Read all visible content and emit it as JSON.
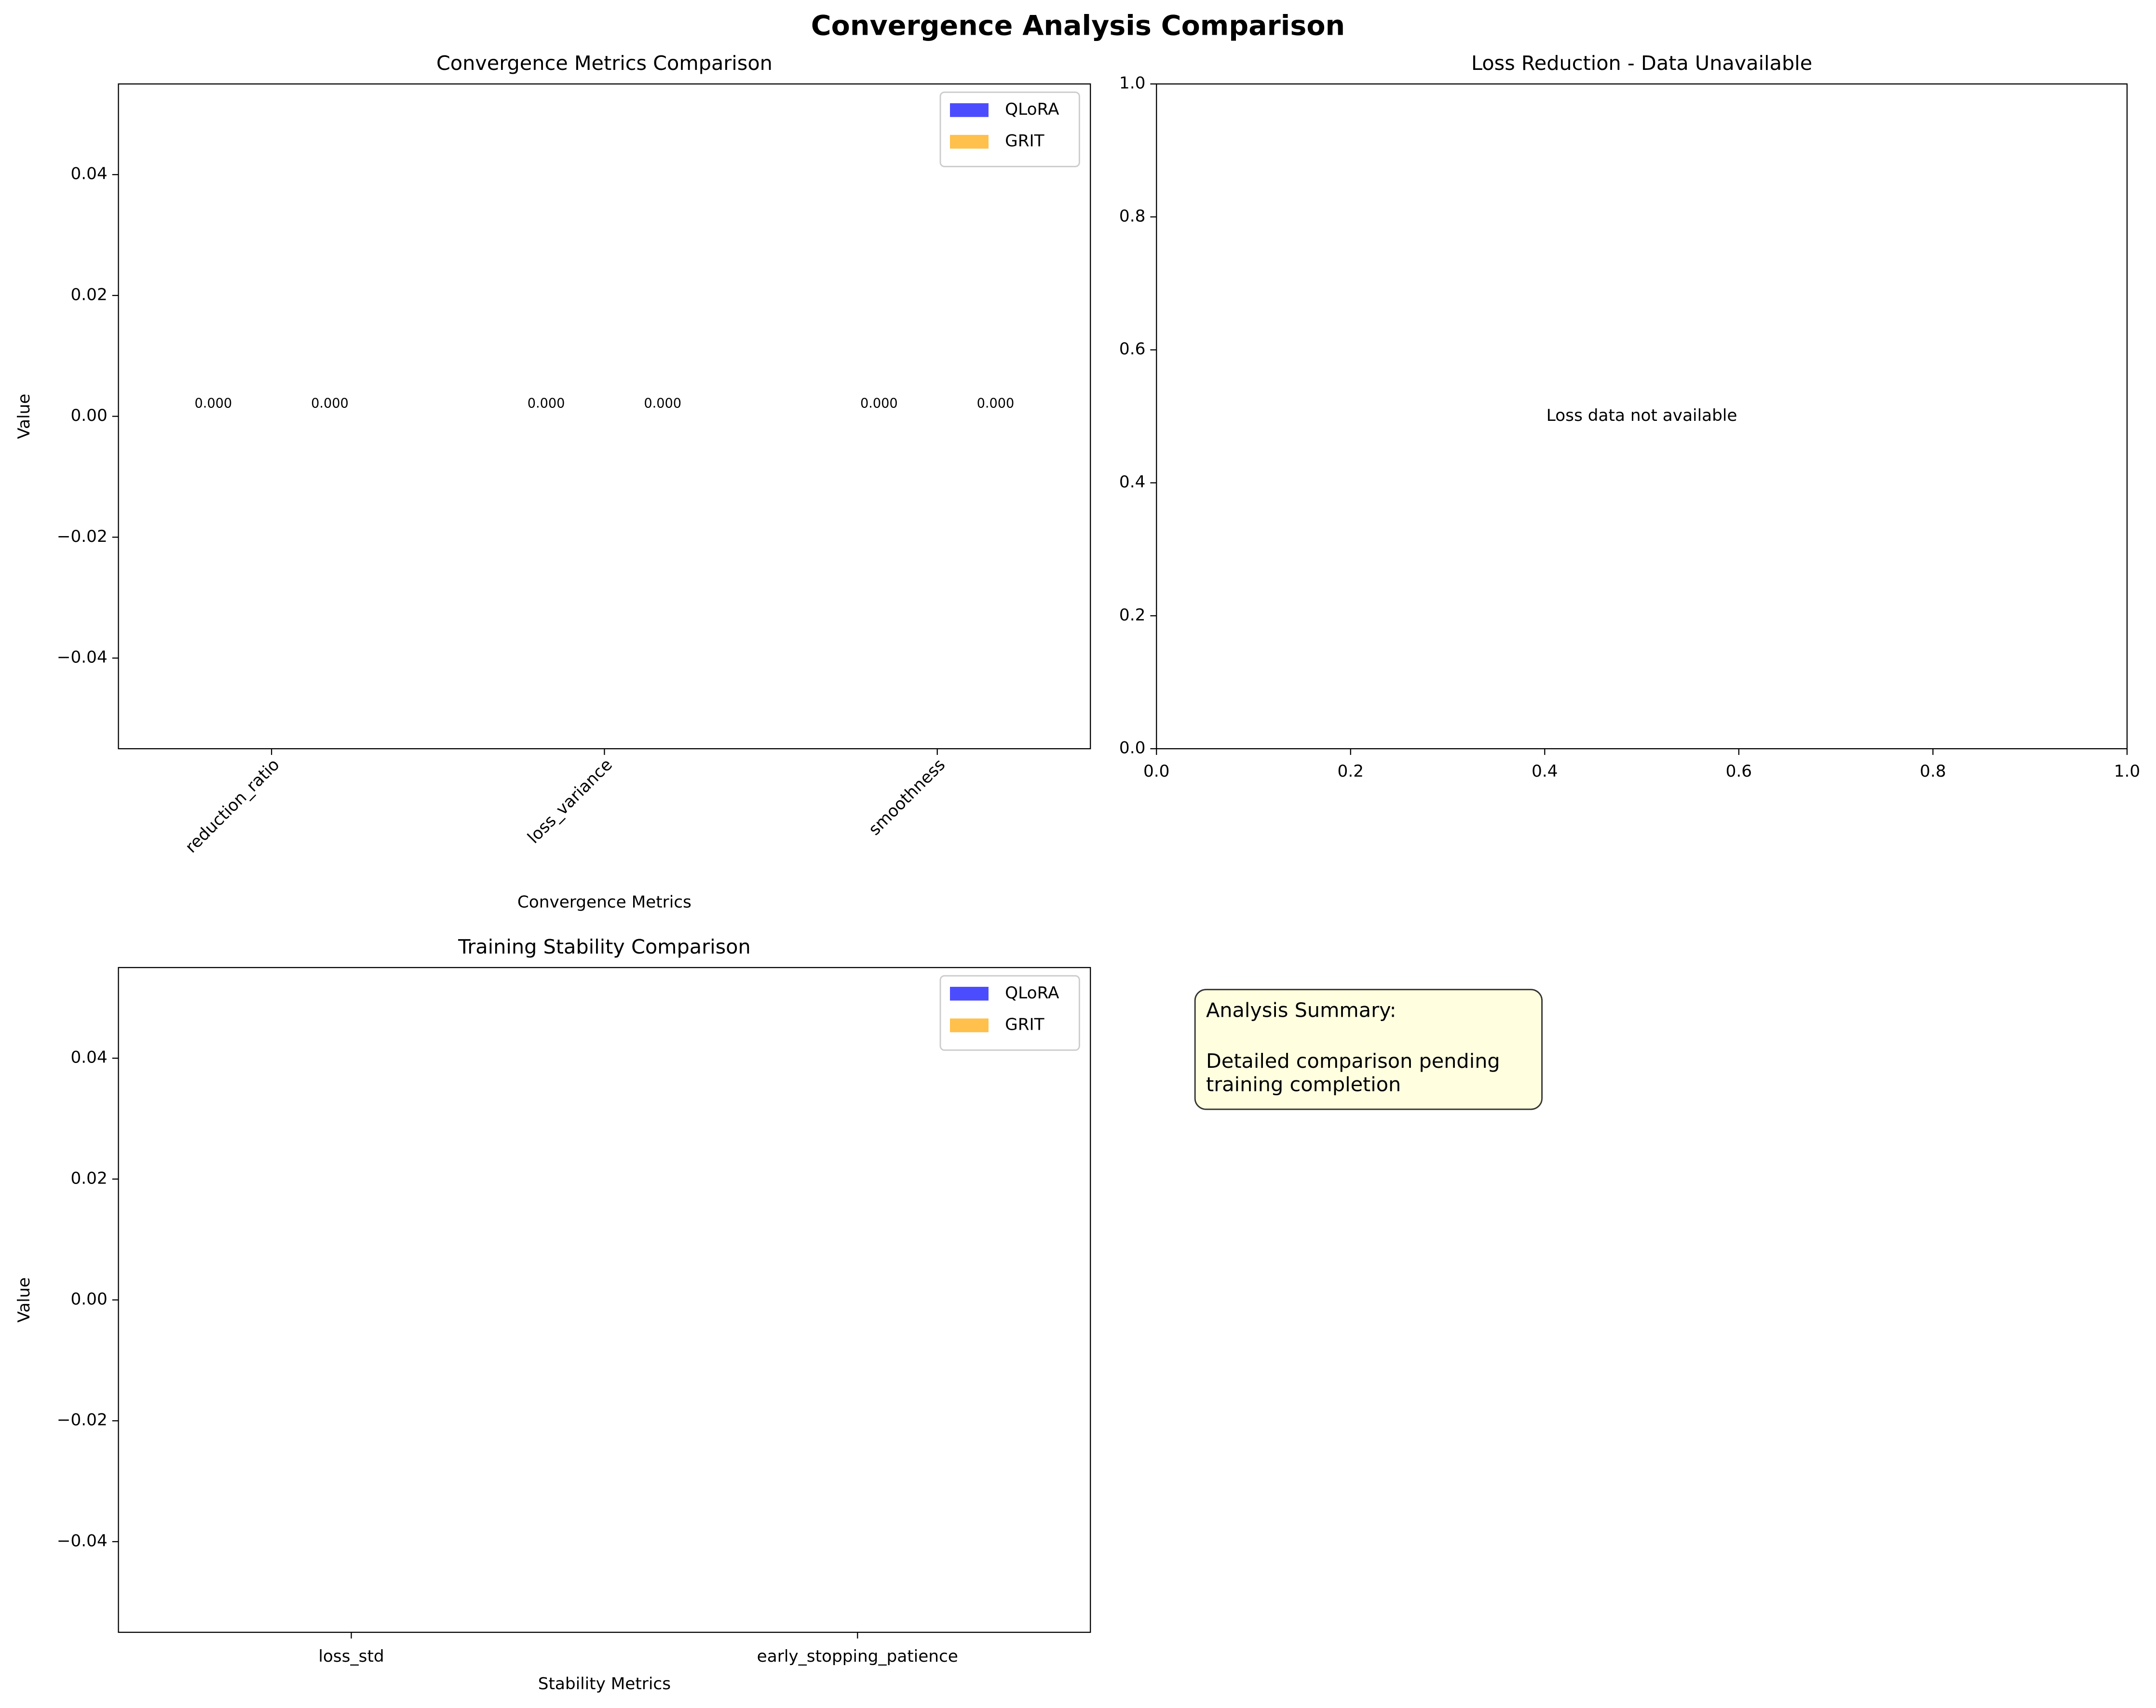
{
  "title": "Convergence Analysis Comparison",
  "chart_data": [
    {
      "type": "bar",
      "title": "Convergence Metrics Comparison",
      "x_label": "Convergence Metrics",
      "y_label": "Value",
      "categories": [
        "reduction_ratio",
        "loss_variance",
        "smoothness"
      ],
      "series": [
        {
          "name": "QLoRA",
          "color": "#0000ff",
          "opacity": 0.7,
          "values": [
            0,
            0,
            0
          ],
          "value_labels": [
            "0.000",
            "0.000",
            "0.000"
          ]
        },
        {
          "name": "GRIT",
          "color": "#ffa500",
          "opacity": 0.7,
          "values": [
            0,
            0,
            0
          ],
          "value_labels": [
            "0.000",
            "0.000",
            "0.000"
          ]
        }
      ],
      "ylim": [
        -0.055,
        0.055
      ],
      "yticks": [
        {
          "value": -0.04,
          "label": "−0.04"
        },
        {
          "value": -0.02,
          "label": "−0.02"
        },
        {
          "value": 0,
          "label": "0.00"
        },
        0.02,
        0.04
      ],
      "xtick_rotation": 45,
      "legend": "upper right"
    },
    {
      "type": "line",
      "title": "Loss Reduction - Data Unavailable",
      "annotation": "Loss data not available",
      "xlim": [
        0,
        1
      ],
      "ylim": [
        0,
        1
      ],
      "xticks": [
        {
          "value": 0,
          "label": "0.0"
        },
        0.2,
        0.4,
        0.6,
        0.8,
        {
          "value": 1,
          "label": "1.0"
        }
      ],
      "yticks": [
        {
          "value": 0,
          "label": "0.0"
        },
        0.2,
        0.4,
        0.6,
        0.8,
        {
          "value": 1,
          "label": "1.0"
        }
      ]
    },
    {
      "type": "bar",
      "title": "Training Stability Comparison",
      "x_label": "Stability Metrics",
      "y_label": "Value",
      "categories": [
        "loss_std",
        "early_stopping_patience"
      ],
      "series": [
        {
          "name": "QLoRA",
          "color": "#0000ff",
          "opacity": 0.7
        },
        {
          "name": "GRIT",
          "color": "#ffa500",
          "opacity": 0.7
        }
      ],
      "ylim": [
        -0.055,
        0.055
      ],
      "yticks": [
        {
          "value": -0.04,
          "label": "−0.04"
        },
        {
          "value": -0.02,
          "label": "−0.02"
        },
        {
          "value": 0,
          "label": "0.00"
        },
        0.02,
        0.04
      ],
      "legend": "upper right"
    }
  ],
  "summary": {
    "lines": [
      "Analysis Summary:",
      "Detailed comparison pending",
      "training completion"
    ]
  }
}
